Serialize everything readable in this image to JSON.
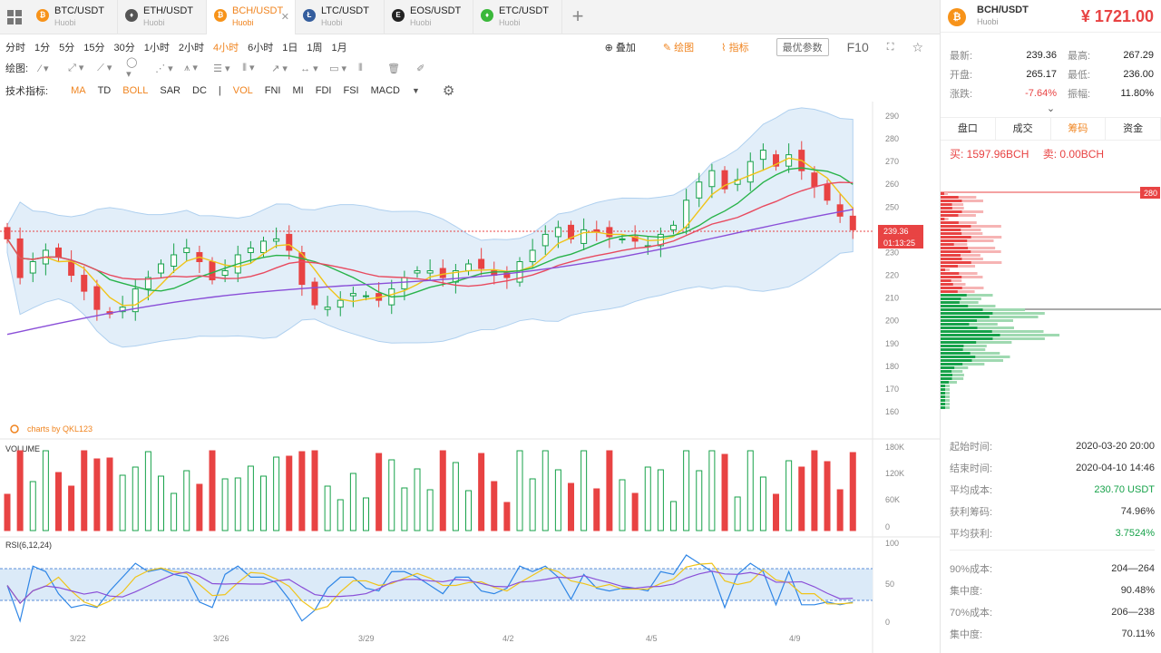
{
  "tabs": [
    {
      "pair": "BTC/USDT",
      "exchange": "Huobi",
      "icon": "bitcoin-icon",
      "color": "#f7931a",
      "glyph": "₿",
      "active": false
    },
    {
      "pair": "ETH/USDT",
      "exchange": "Huobi",
      "icon": "ethereum-icon",
      "color": "#555555",
      "glyph": "♦",
      "active": false
    },
    {
      "pair": "BCH/USDT",
      "exchange": "Huobi",
      "icon": "bitcoin-cash-icon",
      "color": "#f7931a",
      "glyph": "₿",
      "active": true
    },
    {
      "pair": "LTC/USDT",
      "exchange": "Huobi",
      "icon": "litecoin-icon",
      "color": "#345d9d",
      "glyph": "Ł",
      "active": false
    },
    {
      "pair": "EOS/USDT",
      "exchange": "Huobi",
      "icon": "eos-icon",
      "color": "#222222",
      "glyph": "E",
      "active": false
    },
    {
      "pair": "ETC/USDT",
      "exchange": "Huobi",
      "icon": "etc-icon",
      "color": "#3ab83a",
      "glyph": "♦",
      "active": false
    }
  ],
  "timeframes": [
    "分时",
    "1分",
    "5分",
    "15分",
    "30分",
    "1小时",
    "2小时",
    "4小时",
    "6小时",
    "1日",
    "1周",
    "1月"
  ],
  "active_timeframe": "4小时",
  "toolbar": {
    "overlay": "叠加",
    "draw": "绘图",
    "indicator": "指标",
    "prefs": "最优参数",
    "f10": "F10"
  },
  "draw_label": "绘图:",
  "indicators_label": "技术指标:",
  "indicators": [
    {
      "name": "MA",
      "active": true
    },
    {
      "name": "TD",
      "active": false
    },
    {
      "name": "BOLL",
      "active": true
    },
    {
      "name": "SAR",
      "active": false
    },
    {
      "name": "DC",
      "active": false
    },
    {
      "name": "|",
      "active": false
    },
    {
      "name": "VOL",
      "active": true
    },
    {
      "name": "FNI",
      "active": false
    },
    {
      "name": "MI",
      "active": false
    },
    {
      "name": "FDI",
      "active": false
    },
    {
      "name": "FSI",
      "active": false
    },
    {
      "name": "MACD",
      "active": false
    }
  ],
  "chart_data": {
    "type": "candlestick",
    "watermark": "charts by QKL123",
    "price_axis": [
      290,
      280,
      270,
      260,
      250,
      240,
      230,
      220,
      210,
      200,
      190,
      180,
      170,
      160
    ],
    "current_price": "239.36",
    "countdown": "01:13:25",
    "volume_label": "VOLUME",
    "volume_axis": [
      "180K",
      "120K",
      "60K",
      "0"
    ],
    "rsi_label": "RSI(6,12,24)",
    "rsi_axis": [
      "100",
      "50",
      "0"
    ],
    "dates": [
      "3/22",
      "3/26",
      "3/29",
      "4/2",
      "4/5",
      "4/9"
    ],
    "closes": [
      236,
      219,
      226,
      231,
      228,
      220,
      213,
      205,
      203,
      206,
      214,
      219,
      225,
      229,
      232,
      226,
      218,
      222,
      229,
      232,
      235,
      236,
      231,
      216,
      207,
      206,
      209,
      212,
      211,
      209,
      214,
      219,
      222,
      222,
      219,
      222,
      225,
      223,
      220,
      219,
      226,
      231,
      238,
      241,
      236,
      240,
      239,
      237,
      236,
      235,
      233,
      238,
      242,
      253,
      261,
      266,
      258,
      262,
      270,
      275,
      268,
      273,
      266,
      259,
      253,
      246,
      240
    ]
  },
  "panel": {
    "pair": "BCH/USDT",
    "exchange": "Huobi",
    "price": "¥ 1721.00",
    "stats": [
      {
        "l": "最新:",
        "v": "239.36",
        "l2": "最高:",
        "v2": "267.29",
        "c": "#222"
      },
      {
        "l": "开盘:",
        "v": "265.17",
        "l2": "最低:",
        "v2": "236.00",
        "c": "#222"
      },
      {
        "l": "涨跌:",
        "v": "-7.64%",
        "l2": "振幅:",
        "v2": "11.80%",
        "c": "#e84343"
      }
    ],
    "tabs": [
      "盘口",
      "成交",
      "筹码",
      "资金"
    ],
    "active_tab": "筹码",
    "buy": "买: 1597.96BCH",
    "sell": "卖: 0.00BCH",
    "chip_label": "280",
    "info1": [
      {
        "l": "起始时间:",
        "v": "2020-03-20 20:00",
        "g": false
      },
      {
        "l": "结束时间:",
        "v": "2020-04-10 14:46",
        "g": false
      },
      {
        "l": "平均成本:",
        "v": "230.70 USDT",
        "g": true
      },
      {
        "l": "获利筹码:",
        "v": "74.96%",
        "g": false
      },
      {
        "l": "平均获利:",
        "v": "3.7524%",
        "g": true
      }
    ],
    "info2": [
      {
        "l": "90%成本:",
        "v": "204—264",
        "g": false
      },
      {
        "l": "集中度:",
        "v": "90.48%",
        "g": false
      },
      {
        "l": "70%成本:",
        "v": "206—238",
        "g": false
      },
      {
        "l": "集中度:",
        "v": "70.11%",
        "g": false
      }
    ]
  },
  "colors": {
    "up": "#17a24a",
    "down": "#e84343",
    "accent": "#f0841f"
  }
}
